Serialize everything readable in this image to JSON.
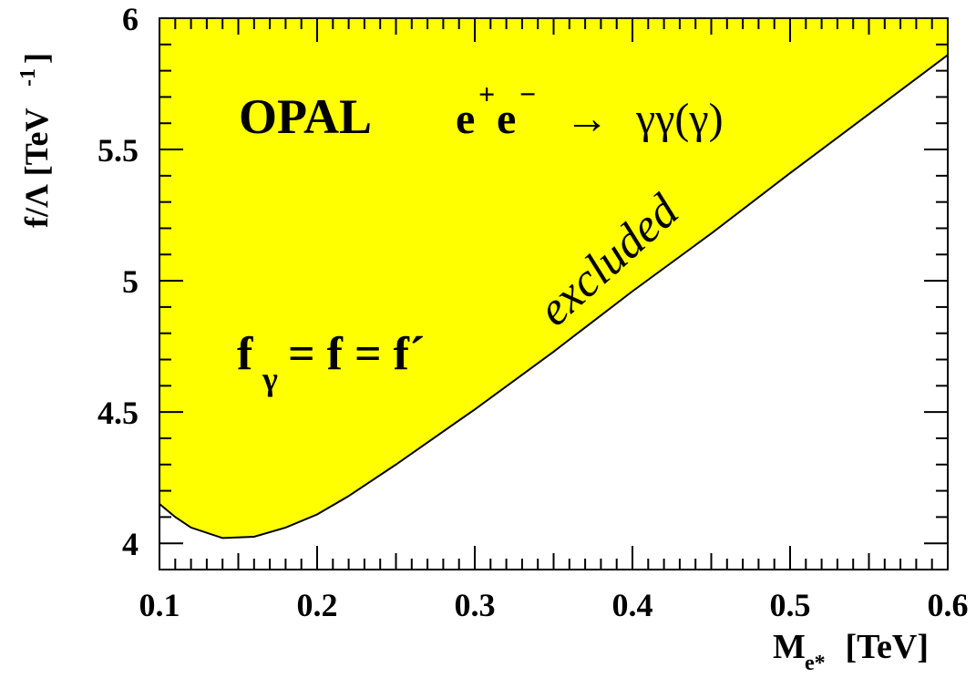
{
  "chart_data": {
    "type": "area",
    "title_experiment": "OPAL",
    "title_reaction": {
      "initial": "e",
      "plus": "+",
      "minus": "−",
      "arrow": "→",
      "final": "γγ(γ)"
    },
    "couplings_label": {
      "f": "f",
      "gamma": "γ",
      "rest": " = f = f´"
    },
    "region_label": "excluded",
    "xlabel": {
      "main": "M",
      "sub": "e*",
      "unit": " [TeV]"
    },
    "ylabel": {
      "main": "f/Λ [TeV",
      "sup": "-1",
      "close": "]"
    },
    "xlim": [
      0.1,
      0.6
    ],
    "ylim": [
      3.9,
      6.0
    ],
    "x_ticks": [
      {
        "value": 0.1,
        "label": "0.1"
      },
      {
        "value": 0.2,
        "label": "0.2"
      },
      {
        "value": 0.3,
        "label": "0.3"
      },
      {
        "value": 0.4,
        "label": "0.4"
      },
      {
        "value": 0.5,
        "label": "0.5"
      },
      {
        "value": 0.6,
        "label": "0.6"
      }
    ],
    "y_ticks": [
      {
        "value": 4.0,
        "label": "4"
      },
      {
        "value": 4.5,
        "label": "4.5"
      },
      {
        "value": 5.0,
        "label": "5"
      },
      {
        "value": 5.5,
        "label": "5.5"
      },
      {
        "value": 6.0,
        "label": "6"
      }
    ],
    "boundary": {
      "x": [
        0.1,
        0.11,
        0.12,
        0.14,
        0.16,
        0.18,
        0.2,
        0.22,
        0.25,
        0.3,
        0.35,
        0.4,
        0.45,
        0.5,
        0.55,
        0.6
      ],
      "y": [
        4.15,
        4.1,
        4.06,
        4.02,
        4.025,
        4.06,
        4.11,
        4.18,
        4.3,
        4.51,
        4.73,
        4.96,
        5.18,
        5.41,
        5.635,
        5.86
      ]
    },
    "fill_color": "#ffff00",
    "line_color": "#000000",
    "grid": false,
    "legend": "none"
  }
}
